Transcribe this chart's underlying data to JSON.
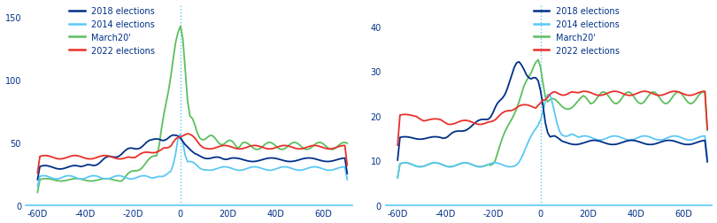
{
  "legend_labels": [
    "2018 elections",
    "2014 elections",
    "March20'",
    "2022 elections"
  ],
  "colors": [
    "#003087",
    "#5BC8F5",
    "#5CBF5F",
    "#E8312A"
  ],
  "x_ticks": [
    -60,
    -40,
    -20,
    0,
    20,
    40,
    60
  ],
  "x_tick_labels": [
    "-60D",
    "-40D",
    "-20D",
    "0",
    "20D",
    "40D",
    "60D"
  ],
  "left_ylim": [
    0,
    160
  ],
  "left_yticks": [
    0,
    50,
    100,
    150
  ],
  "right_ylim": [
    0,
    45
  ],
  "right_yticks": [
    0,
    10,
    20,
    30,
    40
  ],
  "background_color": "#ffffff",
  "axis_color": "#5BC8F5",
  "text_color": "#003087"
}
